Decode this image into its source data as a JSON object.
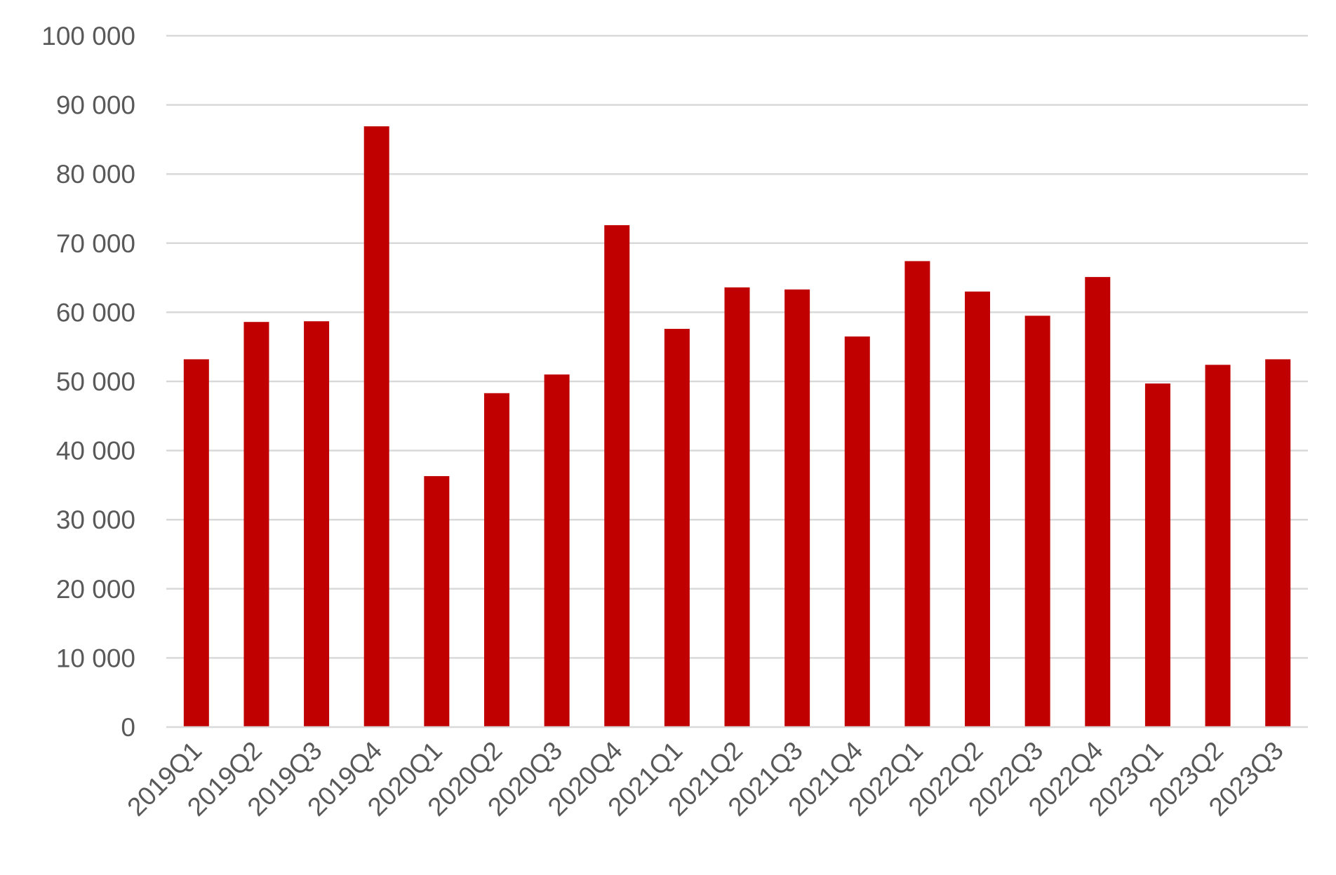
{
  "chart_data": {
    "type": "bar",
    "title": "",
    "xlabel": "",
    "ylabel": "",
    "categories": [
      "2019Q1",
      "2019Q2",
      "2019Q3",
      "2019Q4",
      "2020Q1",
      "2020Q2",
      "2020Q3",
      "2020Q4",
      "2021Q1",
      "2021Q2",
      "2021Q3",
      "2021Q4",
      "2022Q1",
      "2022Q2",
      "2022Q3",
      "2022Q4",
      "2023Q1",
      "2023Q2",
      "2023Q3"
    ],
    "series": [
      {
        "color": "#c00000",
        "values": [
          53200,
          58600,
          58700,
          86900,
          36300,
          48300,
          51000,
          72600,
          57600,
          63600,
          63300,
          56500,
          67400,
          63000,
          59500,
          65100,
          49700,
          52400,
          53200
        ]
      }
    ],
    "ylim": [
      0,
      100000
    ],
    "yticks": [
      0,
      10000,
      20000,
      30000,
      40000,
      50000,
      60000,
      70000,
      80000,
      90000,
      100000
    ],
    "ytick_labels": [
      "0",
      "10 000",
      "20 000",
      "30 000",
      "40 000",
      "50 000",
      "60 000",
      "70 000",
      "80 000",
      "90 000",
      "100 000"
    ],
    "grid": true,
    "legend": "none",
    "colors": {
      "bar": "#c00000",
      "grid": "#d9d9d9",
      "text": "#595959"
    }
  }
}
